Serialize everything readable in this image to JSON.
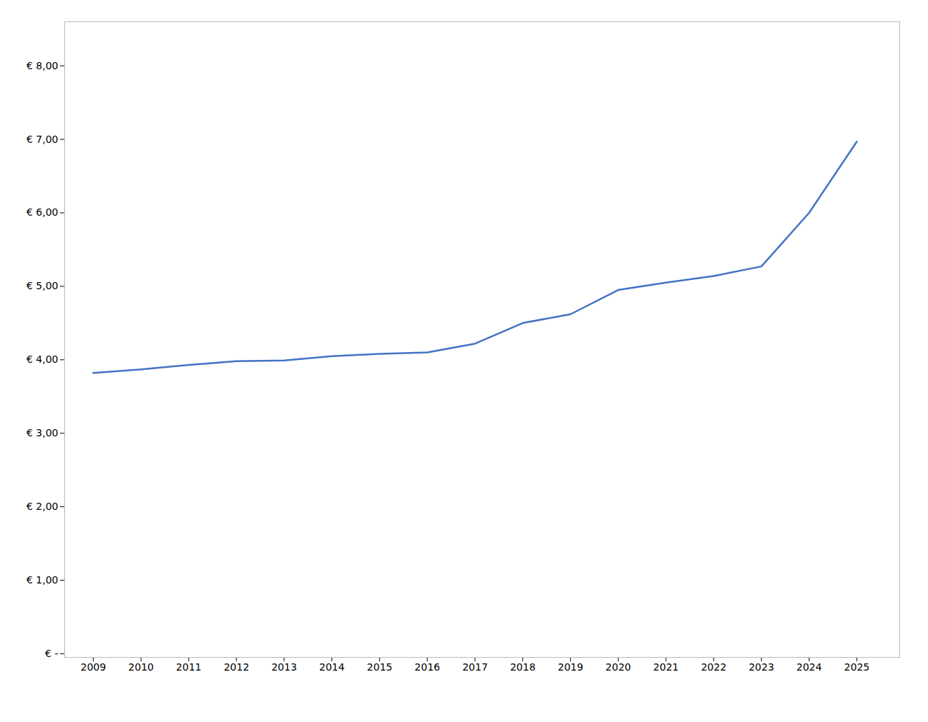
{
  "chart_data": {
    "type": "line",
    "x": [
      2009,
      2010,
      2011,
      2012,
      2013,
      2014,
      2015,
      2016,
      2017,
      2018,
      2019,
      2020,
      2021,
      2022,
      2023,
      2024,
      2025
    ],
    "values": [
      3.82,
      3.87,
      3.93,
      3.98,
      3.99,
      4.05,
      4.08,
      4.1,
      4.22,
      4.5,
      4.62,
      4.95,
      5.05,
      5.14,
      5.27,
      6.0,
      6.97
    ],
    "color": "#4472C4",
    "xlim": [
      2008.4,
      2025.9
    ],
    "xticks": [
      2009,
      2010,
      2011,
      2012,
      2013,
      2014,
      2015,
      2016,
      2017,
      2018,
      2019,
      2020,
      2021,
      2022,
      2023,
      2024,
      2025
    ],
    "ylim": [
      -0.05,
      8.6
    ],
    "yticks": [
      {
        "value": 0,
        "label": "€ -"
      },
      {
        "value": 1,
        "label": "€ 1,00"
      },
      {
        "value": 2,
        "label": "€ 2,00"
      },
      {
        "value": 3,
        "label": "€ 3,00"
      },
      {
        "value": 4,
        "label": "€ 4,00"
      },
      {
        "value": 5,
        "label": "€ 5,00"
      },
      {
        "value": 6,
        "label": "€ 6,00"
      },
      {
        "value": 7,
        "label": "€ 7,00"
      },
      {
        "value": 8,
        "label": "€ 8,00"
      }
    ],
    "grid": false
  }
}
